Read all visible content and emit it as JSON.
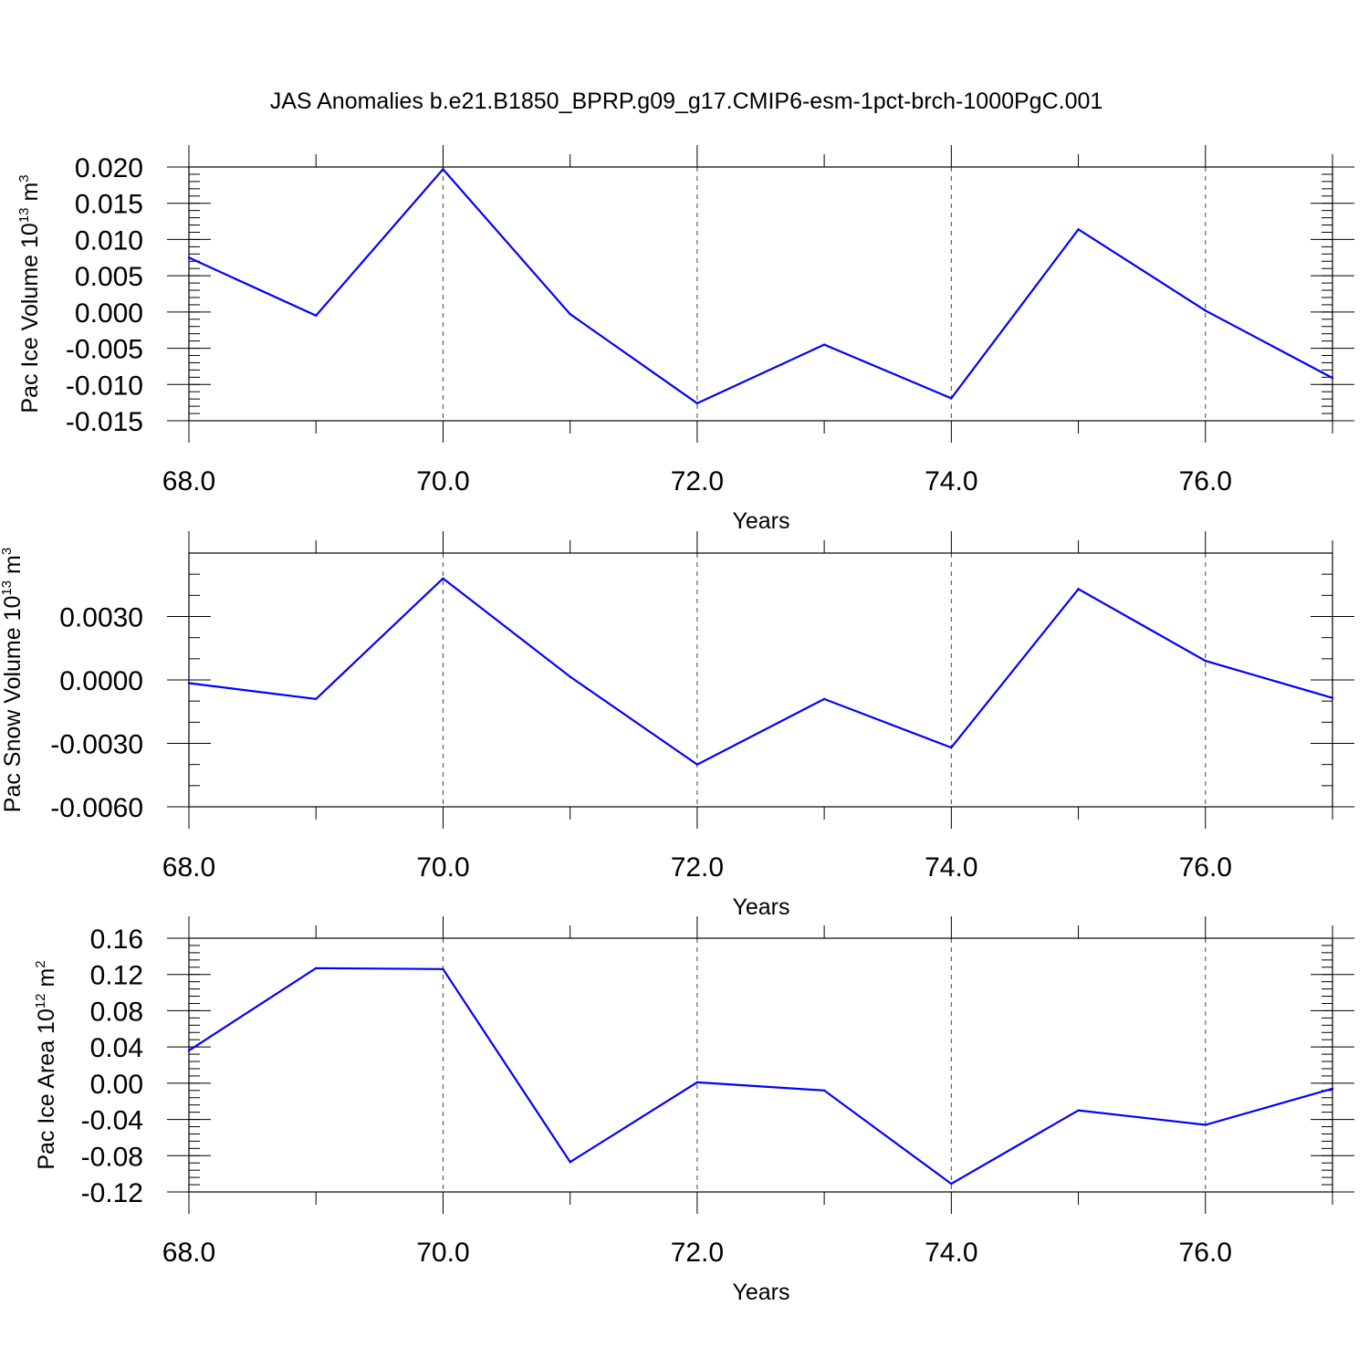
{
  "title": "JAS Anomalies b.e21.B1850_BPRP.g09_g17.CMIP6-esm-1pct-brch-1000PgC.001",
  "colors": {
    "series": "#0000ff",
    "axes": "#000000",
    "grid": "#444444"
  },
  "chart_data": [
    {
      "type": "line",
      "xlabel": "Years",
      "ylabel": {
        "text": "Pac Ice Volume 10",
        "sup": "13",
        "unit": " m",
        "unit_sup": "3"
      },
      "xlim": [
        68,
        77
      ],
      "ylim": [
        -0.015,
        0.02
      ],
      "xticks": [
        "68.0",
        "70.0",
        "72.0",
        "74.0",
        "76.0"
      ],
      "xtick_values": [
        68,
        70,
        72,
        74,
        76
      ],
      "yticks": [
        "0.020",
        "0.015",
        "0.010",
        "0.005",
        "0.000",
        "-0.005",
        "-0.010",
        "-0.015"
      ],
      "ytick_values": [
        0.02,
        0.015,
        0.01,
        0.005,
        0.0,
        -0.005,
        -0.01,
        -0.015
      ],
      "ytick_minor_step": 0.001,
      "grid": "dashed vertical at major x ticks",
      "x": [
        68,
        69,
        70,
        71,
        72,
        73,
        74,
        75,
        76,
        77
      ],
      "y": [
        0.0075,
        -0.0005,
        0.0197,
        -0.0003,
        -0.0126,
        -0.0045,
        -0.0119,
        0.0114,
        0.0002,
        -0.0091
      ]
    },
    {
      "type": "line",
      "xlabel": "Years",
      "ylabel": {
        "text": "Pac Snow Volume 10",
        "sup": "13",
        "unit": " m",
        "unit_sup": "3"
      },
      "xlim": [
        68,
        77
      ],
      "ylim": [
        -0.006,
        0.006
      ],
      "xticks": [
        "68.0",
        "70.0",
        "72.0",
        "74.0",
        "76.0"
      ],
      "xtick_values": [
        68,
        70,
        72,
        74,
        76
      ],
      "yticks": [
        "0.0030",
        "0.0000",
        "-0.0030",
        "-0.0060"
      ],
      "ytick_values": [
        0.003,
        0.0,
        -0.003,
        -0.006
      ],
      "ytick_minor_step": 0.001,
      "grid": "dashed vertical at major x ticks",
      "x": [
        68,
        69,
        70,
        71,
        72,
        73,
        74,
        75,
        76,
        77
      ],
      "y": [
        -0.00015,
        -0.0009,
        0.0048,
        0.00015,
        -0.004,
        -0.0009,
        -0.0032,
        0.0043,
        0.0009,
        -0.00085
      ]
    },
    {
      "type": "line",
      "xlabel": "Years",
      "ylabel": {
        "text": "Pac Ice Area 10",
        "sup": "12",
        "unit": " m",
        "unit_sup": "2"
      },
      "xlim": [
        68,
        77
      ],
      "ylim": [
        -0.12,
        0.16
      ],
      "xticks": [
        "68.0",
        "70.0",
        "72.0",
        "74.0",
        "76.0"
      ],
      "xtick_values": [
        68,
        70,
        72,
        74,
        76
      ],
      "yticks": [
        "0.16",
        "0.12",
        "0.08",
        "0.04",
        "0.00",
        "-0.04",
        "-0.08",
        "-0.12"
      ],
      "ytick_values": [
        0.16,
        0.12,
        0.08,
        0.04,
        0.0,
        -0.04,
        -0.08,
        -0.12
      ],
      "ytick_minor_step": 0.008,
      "grid": "dashed vertical at major x ticks",
      "x": [
        68,
        69,
        70,
        71,
        72,
        73,
        74,
        75,
        76,
        77
      ],
      "y": [
        0.036,
        0.127,
        0.126,
        -0.087,
        0.001,
        -0.008,
        -0.111,
        -0.03,
        -0.046,
        -0.006
      ]
    }
  ]
}
